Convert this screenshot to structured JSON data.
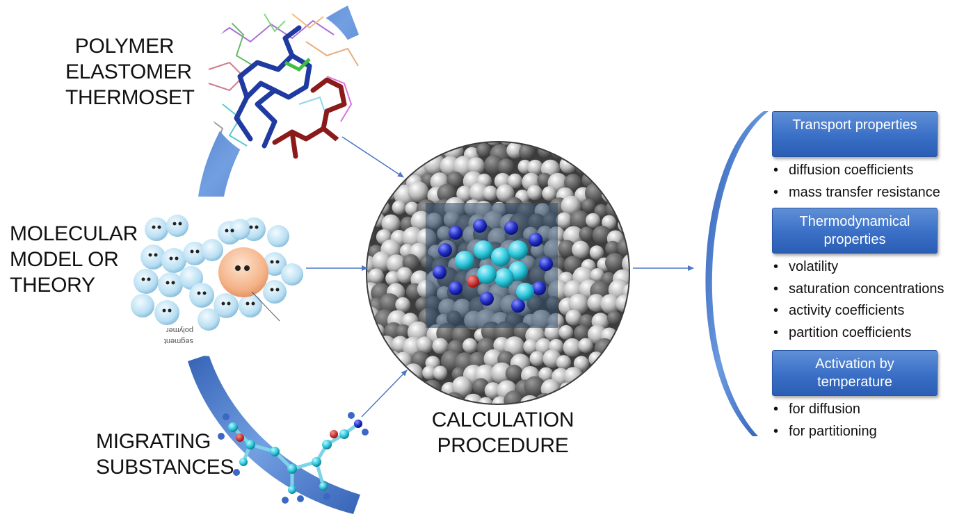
{
  "left_labels": {
    "polymer": [
      "POLYMER",
      "ELASTOMER",
      "THERMOSET"
    ],
    "model": [
      "MOLECULAR",
      "MODEL OR",
      "THEORY"
    ],
    "migrating": [
      "MIGRATING",
      "SUBSTANCES"
    ]
  },
  "center_label": [
    "CALCULATION",
    "PROCEDURE"
  ],
  "model_image_labels": [
    "polymer",
    "segment"
  ],
  "groups": [
    {
      "title": [
        "Transport properties"
      ],
      "items": [
        "diffusion coefficients",
        "mass transfer resistance"
      ]
    },
    {
      "title": [
        "Thermodynamical",
        "properties"
      ],
      "items": [
        "volatility",
        "saturation concentrations",
        "activity coefficients",
        "partition coefficients"
      ]
    },
    {
      "title": [
        "Activation by",
        "temperature"
      ],
      "items": [
        "for diffusion",
        "for partitioning"
      ]
    }
  ],
  "colors": {
    "accent": "#3b6fc7",
    "arrow": "#4a78c2",
    "header_bg": "#3a6fc6",
    "box_text": "#ffffff"
  }
}
